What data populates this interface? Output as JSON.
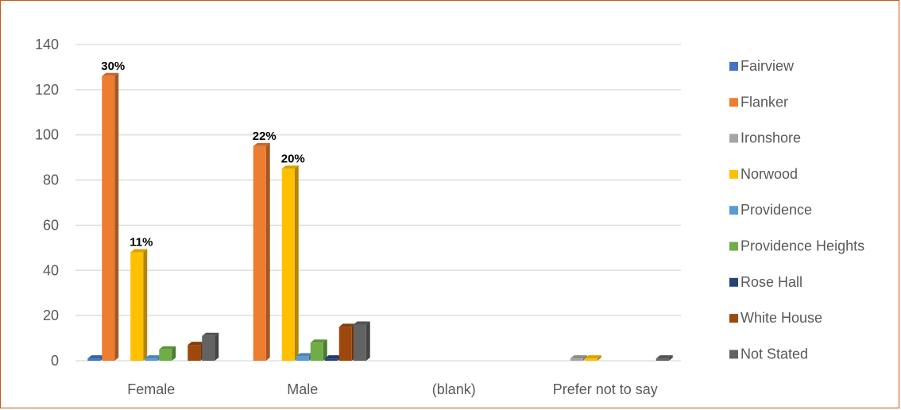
{
  "chart_data": {
    "type": "bar",
    "title": "",
    "xlabel": "",
    "ylabel": "",
    "ylim": [
      0,
      140
    ],
    "yticks": [
      0,
      20,
      40,
      60,
      80,
      100,
      120,
      140
    ],
    "grid": true,
    "legend_position": "right",
    "categories": [
      "Female",
      "Male",
      "(blank)",
      "Prefer not to say"
    ],
    "series": [
      {
        "name": "Fairview",
        "color": "#4472c4",
        "values": [
          1,
          0,
          0,
          0
        ]
      },
      {
        "name": "Flanker",
        "color": "#ed7d31",
        "values": [
          126,
          95,
          0,
          0
        ]
      },
      {
        "name": "Ironshore",
        "color": "#a5a5a5",
        "values": [
          0,
          0,
          0,
          1
        ]
      },
      {
        "name": "Norwood",
        "color": "#ffc000",
        "values": [
          48,
          85,
          0,
          1
        ]
      },
      {
        "name": "Providence",
        "color": "#5b9bd5",
        "values": [
          1,
          2,
          0,
          0
        ]
      },
      {
        "name": "Providence Heights",
        "color": "#70ad47",
        "values": [
          5,
          8,
          0,
          0
        ]
      },
      {
        "name": "Rose Hall",
        "color": "#264478",
        "values": [
          0,
          1,
          0,
          0
        ]
      },
      {
        "name": "White House",
        "color": "#9e480e",
        "values": [
          7,
          15,
          0,
          0
        ]
      },
      {
        "name": "Not Stated",
        "color": "#636363",
        "values": [
          11,
          16,
          0,
          1
        ]
      }
    ],
    "data_labels": [
      {
        "series": "Flanker",
        "category": "Female",
        "text": "30%"
      },
      {
        "series": "Norwood",
        "category": "Female",
        "text": "11%"
      },
      {
        "series": "Flanker",
        "category": "Male",
        "text": "22%"
      },
      {
        "series": "Norwood",
        "category": "Male",
        "text": "20%"
      }
    ]
  }
}
